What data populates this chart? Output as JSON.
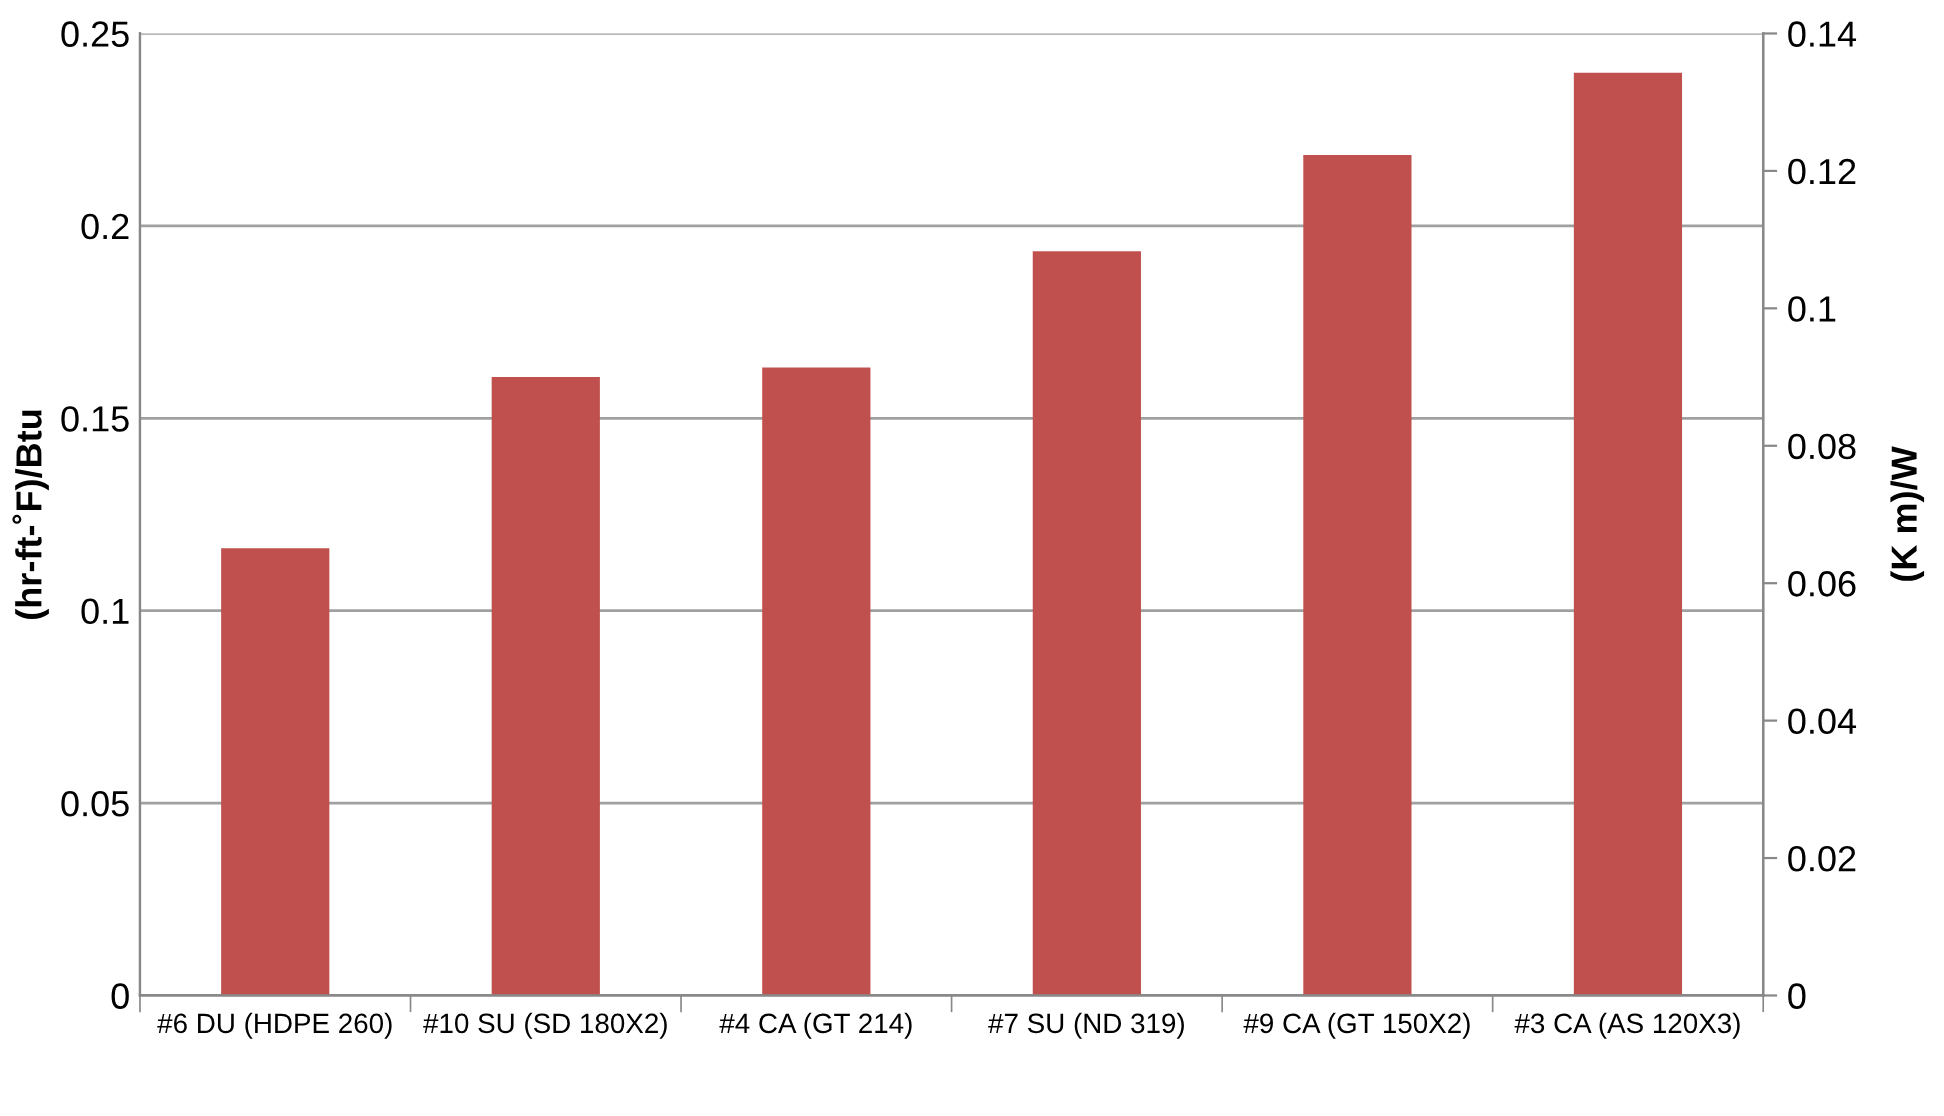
{
  "chart_data": {
    "type": "bar",
    "categories": [
      "#6 DU (HDPE 260)",
      "#10 SU (SD 180X2)",
      "#4 CA (GT 214)",
      "#7 SU (ND 319)",
      "#9 CA (GT 150X2)",
      "#3 CA (AS 120X3)"
    ],
    "series": [
      {
        "color": "#c0504d",
        "axis": "y2",
        "values": [
          0.0651,
          0.09,
          0.0914,
          0.1083,
          0.1223,
          0.1343
        ]
      }
    ],
    "ylabel": "(hr-ft-˚F)/Btu",
    "y2label": "(K m)/W",
    "ylim": [
      0,
      0.25
    ],
    "yticks": [
      {
        "value": 0,
        "label": "0"
      },
      0.05,
      {
        "value": 0.1,
        "label": "0.1"
      },
      0.15,
      {
        "value": 0.2,
        "label": "0.2"
      },
      0.25
    ],
    "y2lim": [
      0,
      0.14
    ],
    "y2ticks": [
      {
        "value": 0,
        "label": "0"
      },
      0.02,
      0.04,
      0.06,
      0.08,
      {
        "value": 0.1,
        "label": "0.1"
      },
      0.12,
      0.14
    ],
    "grid": "y"
  }
}
